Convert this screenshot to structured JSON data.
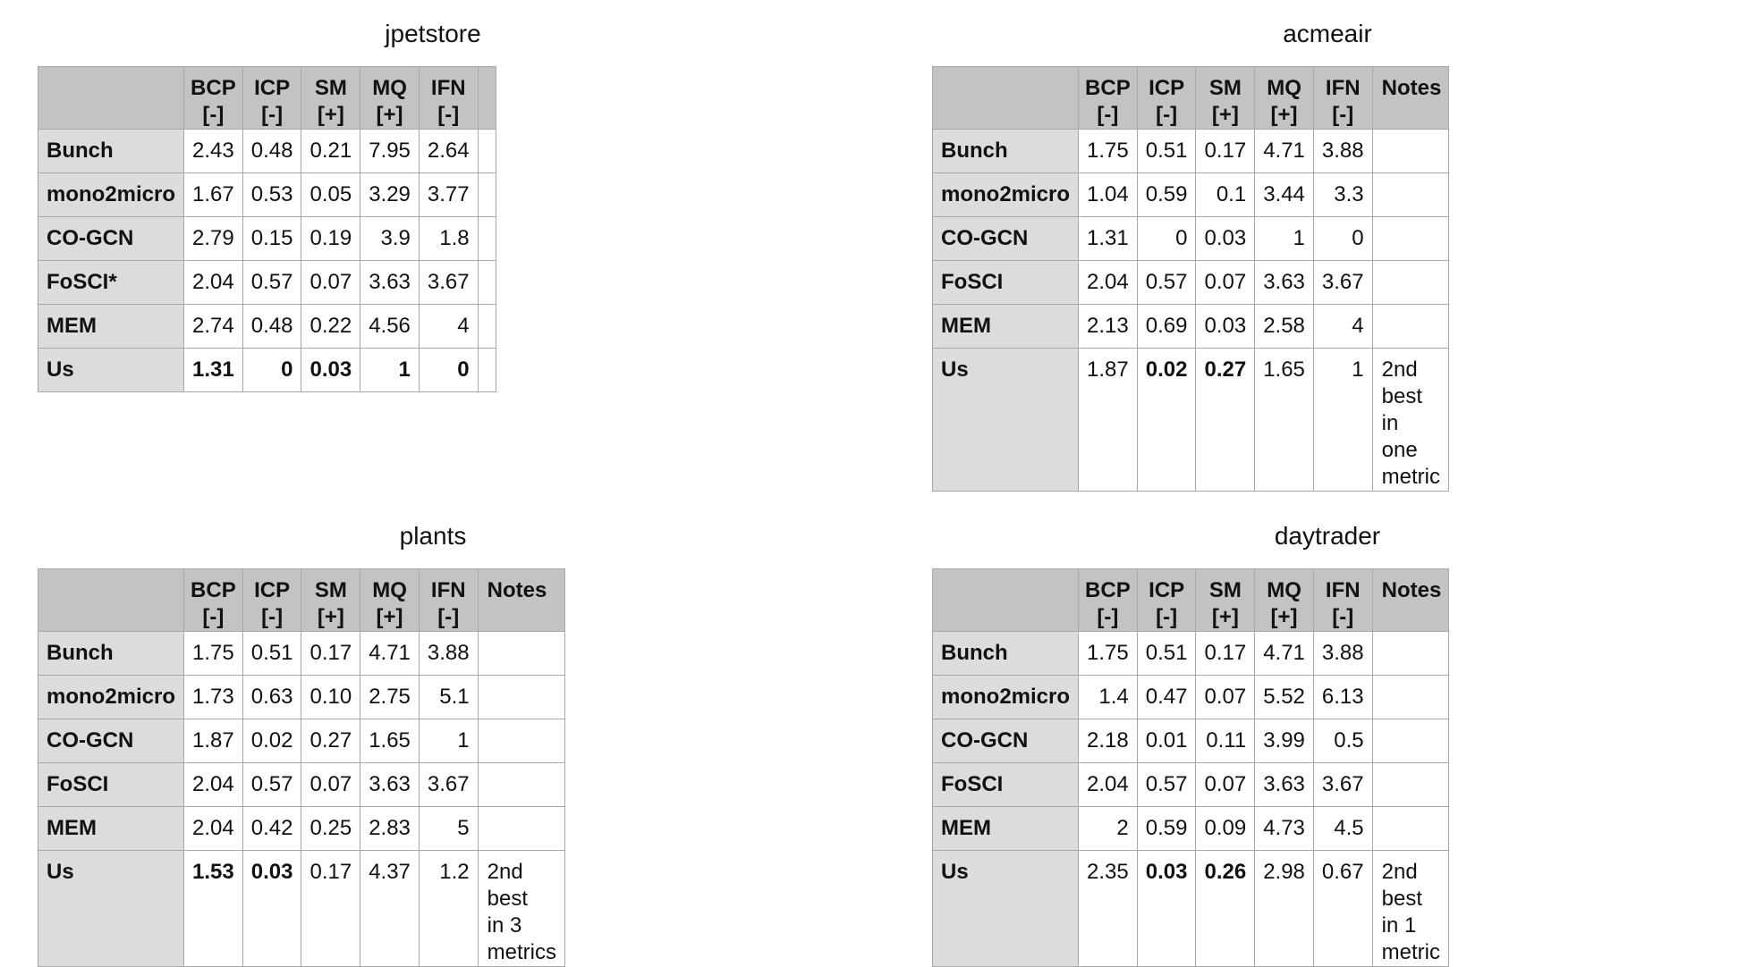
{
  "tables": [
    {
      "title": "jpetstore",
      "headers": [
        "",
        "BCP [-]",
        "ICP [-]",
        "SM [+]",
        "MQ [+]",
        "IFN [-]",
        ""
      ],
      "rows": [
        {
          "name": "Bunch",
          "values": [
            "2.43",
            "0.48",
            "0.21",
            "7.95",
            "2.64"
          ],
          "bold": [
            false,
            false,
            false,
            false,
            false
          ],
          "note": []
        },
        {
          "name": "mono2micro",
          "values": [
            "1.67",
            "0.53",
            "0.05",
            "3.29",
            "3.77"
          ],
          "bold": [
            false,
            false,
            false,
            false,
            false
          ],
          "note": []
        },
        {
          "name": "CO-GCN",
          "values": [
            "2.79",
            "0.15",
            "0.19",
            "3.9",
            "1.8"
          ],
          "bold": [
            false,
            false,
            false,
            false,
            false
          ],
          "note": []
        },
        {
          "name": "FoSCI*",
          "values": [
            "2.04",
            "0.57",
            "0.07",
            "3.63",
            "3.67"
          ],
          "bold": [
            false,
            false,
            false,
            false,
            false
          ],
          "note": []
        },
        {
          "name": "MEM",
          "values": [
            "2.74",
            "0.48",
            "0.22",
            "4.56",
            "4"
          ],
          "bold": [
            false,
            false,
            false,
            false,
            false
          ],
          "note": []
        },
        {
          "name": "Us",
          "values": [
            "1.31",
            "0",
            "0.03",
            "1",
            "0"
          ],
          "bold": [
            true,
            true,
            true,
            true,
            true
          ],
          "note": []
        }
      ]
    },
    {
      "title": "acmeair",
      "headers": [
        "",
        "BCP [-]",
        "ICP [-]",
        "SM [+]",
        "MQ [+]",
        "IFN [-]",
        "Notes"
      ],
      "rows": [
        {
          "name": "Bunch",
          "values": [
            "1.75",
            "0.51",
            "0.17",
            "4.71",
            "3.88"
          ],
          "bold": [
            false,
            false,
            false,
            false,
            false
          ],
          "note": []
        },
        {
          "name": "mono2micro",
          "values": [
            "1.04",
            "0.59",
            "0.1",
            "3.44",
            "3.3"
          ],
          "bold": [
            false,
            false,
            false,
            false,
            false
          ],
          "note": []
        },
        {
          "name": "CO-GCN",
          "values": [
            "1.31",
            "0",
            "0.03",
            "1",
            "0"
          ],
          "bold": [
            false,
            false,
            false,
            false,
            false
          ],
          "note": []
        },
        {
          "name": "FoSCI",
          "values": [
            "2.04",
            "0.57",
            "0.07",
            "3.63",
            "3.67"
          ],
          "bold": [
            false,
            false,
            false,
            false,
            false
          ],
          "note": []
        },
        {
          "name": "MEM",
          "values": [
            "2.13",
            "0.69",
            "0.03",
            "2.58",
            "4"
          ],
          "bold": [
            false,
            false,
            false,
            false,
            false
          ],
          "note": []
        },
        {
          "name": "Us",
          "values": [
            "1.87",
            "0.02",
            "0.27",
            "1.65",
            "1"
          ],
          "bold": [
            false,
            true,
            true,
            false,
            false
          ],
          "note": [
            "2nd best",
            "in one",
            "metric"
          ]
        }
      ]
    },
    {
      "title": "plants",
      "headers": [
        "",
        "BCP [-]",
        "ICP [-]",
        "SM [+]",
        "MQ [+]",
        "IFN [-]",
        "Notes"
      ],
      "rows": [
        {
          "name": "Bunch",
          "values": [
            "1.75",
            "0.51",
            "0.17",
            "4.71",
            "3.88"
          ],
          "bold": [
            false,
            false,
            false,
            false,
            false
          ],
          "note": []
        },
        {
          "name": "mono2micro",
          "values": [
            "1.73",
            "0.63",
            "0.10",
            "2.75",
            "5.1"
          ],
          "bold": [
            false,
            false,
            false,
            false,
            false
          ],
          "note": []
        },
        {
          "name": "CO-GCN",
          "values": [
            "1.87",
            "0.02",
            "0.27",
            "1.65",
            "1"
          ],
          "bold": [
            false,
            false,
            false,
            false,
            false
          ],
          "note": []
        },
        {
          "name": "FoSCI",
          "values": [
            "2.04",
            "0.57",
            "0.07",
            "3.63",
            "3.67"
          ],
          "bold": [
            false,
            false,
            false,
            false,
            false
          ],
          "note": []
        },
        {
          "name": "MEM",
          "values": [
            "2.04",
            "0.42",
            "0.25",
            "2.83",
            "5"
          ],
          "bold": [
            false,
            false,
            false,
            false,
            false
          ],
          "note": []
        },
        {
          "name": "Us",
          "values": [
            "1.53",
            "0.03",
            "0.17",
            "4.37",
            "1.2"
          ],
          "bold": [
            true,
            true,
            false,
            false,
            false
          ],
          "note": [
            "2nd best",
            "in 3",
            "metrics"
          ]
        }
      ]
    },
    {
      "title": "daytrader",
      "headers": [
        "",
        "BCP [-]",
        "ICP [-]",
        "SM [+]",
        "MQ [+]",
        "IFN [-]",
        "Notes"
      ],
      "rows": [
        {
          "name": "Bunch",
          "values": [
            "1.75",
            "0.51",
            "0.17",
            "4.71",
            "3.88"
          ],
          "bold": [
            false,
            false,
            false,
            false,
            false
          ],
          "note": []
        },
        {
          "name": "mono2micro",
          "values": [
            "1.4",
            "0.47",
            "0.07",
            "5.52",
            "6.13"
          ],
          "bold": [
            false,
            false,
            false,
            false,
            false
          ],
          "note": []
        },
        {
          "name": "CO-GCN",
          "values": [
            "2.18",
            "0.01",
            "0.11",
            "3.99",
            "0.5"
          ],
          "bold": [
            false,
            false,
            false,
            false,
            false
          ],
          "note": []
        },
        {
          "name": "FoSCI",
          "values": [
            "2.04",
            "0.57",
            "0.07",
            "3.63",
            "3.67"
          ],
          "bold": [
            false,
            false,
            false,
            false,
            false
          ],
          "note": []
        },
        {
          "name": "MEM",
          "values": [
            "2",
            "0.59",
            "0.09",
            "4.73",
            "4.5"
          ],
          "bold": [
            false,
            false,
            false,
            false,
            false
          ],
          "note": []
        },
        {
          "name": "Us",
          "values": [
            "2.35",
            "0.03",
            "0.26",
            "2.98",
            "0.67"
          ],
          "bold": [
            false,
            true,
            true,
            false,
            false
          ],
          "note": [
            "2nd best",
            "in 1",
            "metric"
          ]
        }
      ]
    }
  ]
}
